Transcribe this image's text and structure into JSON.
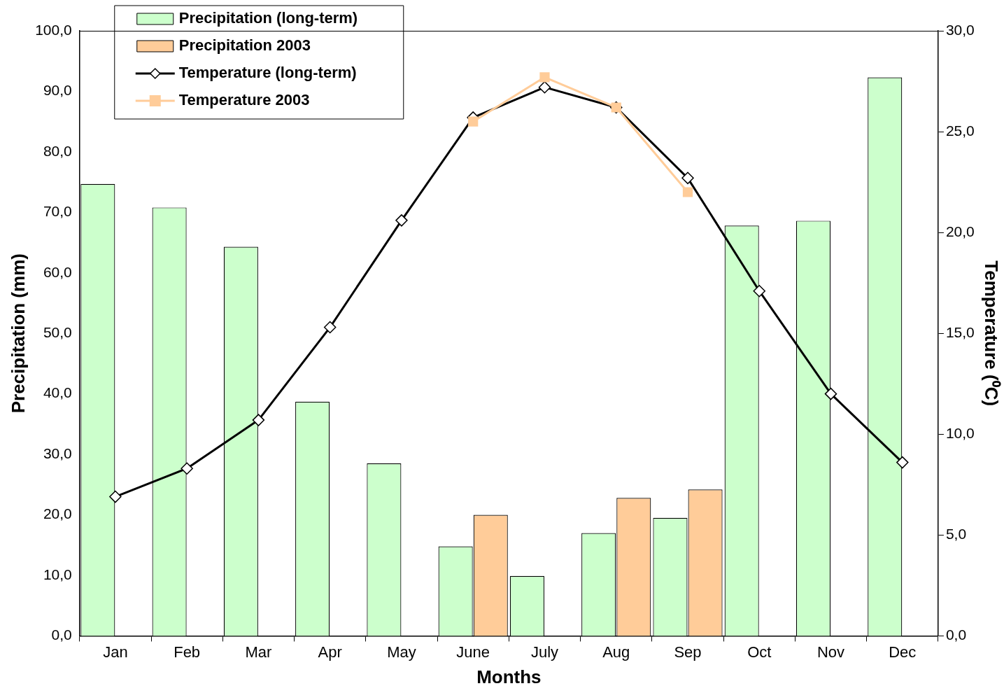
{
  "chart_data": {
    "type": "bar",
    "xlabel": "Months",
    "ylabel": "Precipitation (mm)",
    "y2label": "Temperature (⁰C)",
    "categories": [
      "Jan",
      "Feb",
      "Mar",
      "Apr",
      "May",
      "June",
      "July",
      "Aug",
      "Sep",
      "Oct",
      "Nov",
      "Dec"
    ],
    "series": [
      {
        "name": "Precipitation (long-term)",
        "color": "#ccffcc",
        "values": [
          74.7,
          70.8,
          64.3,
          38.7,
          28.5,
          14.8,
          9.9,
          17.0,
          19.5,
          67.8,
          68.6,
          92.3
        ]
      },
      {
        "name": "Precipitation 2003",
        "color": "#ffcc99",
        "values": [
          null,
          null,
          null,
          null,
          null,
          20.0,
          null,
          22.8,
          24.2,
          null,
          null,
          null
        ]
      },
      {
        "name": "Temperature (long-term)",
        "type": "line",
        "axis": "y2",
        "color": "#000000",
        "marker": "diamond",
        "values": [
          6.9,
          8.3,
          10.7,
          15.3,
          20.6,
          25.7,
          27.2,
          26.2,
          22.7,
          17.1,
          12.0,
          8.6
        ]
      },
      {
        "name": "Temperature 2003",
        "type": "line",
        "axis": "y2",
        "color": "#ffcc99",
        "marker": "square",
        "values": [
          null,
          null,
          null,
          null,
          null,
          25.5,
          27.7,
          26.2,
          22.0,
          null,
          null,
          null
        ]
      }
    ],
    "ylim": [
      0,
      100
    ],
    "yticks": [
      {
        "value": 0,
        "label": "0,0"
      },
      {
        "value": 10,
        "label": "10,0"
      },
      {
        "value": 20,
        "label": "20,0"
      },
      {
        "value": 30,
        "label": "30,0"
      },
      {
        "value": 40,
        "label": "40,0"
      },
      {
        "value": 50,
        "label": "50,0"
      },
      {
        "value": 60,
        "label": "60,0"
      },
      {
        "value": 70,
        "label": "70,0"
      },
      {
        "value": 80,
        "label": "80,0"
      },
      {
        "value": 90,
        "label": "90,0"
      },
      {
        "value": 100,
        "label": "100,0"
      }
    ],
    "y2lim": [
      0,
      30
    ],
    "y2ticks": [
      {
        "value": 0,
        "label": "0,0"
      },
      {
        "value": 5,
        "label": "5,0"
      },
      {
        "value": 10,
        "label": "10,0"
      },
      {
        "value": 15,
        "label": "15,0"
      },
      {
        "value": 20,
        "label": "20,0"
      },
      {
        "value": 25,
        "label": "25,0"
      },
      {
        "value": 30,
        "label": "30,0"
      }
    ],
    "grid": false,
    "legend": "top left"
  }
}
